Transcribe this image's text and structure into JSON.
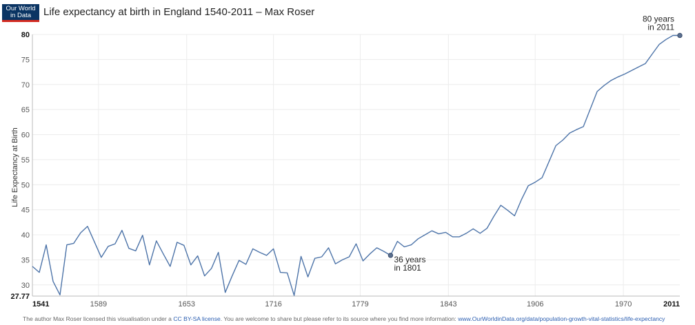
{
  "header": {
    "logo_line1": "Our World",
    "logo_line2": "in Data",
    "title": "Life expectancy at birth in England 1540-2011 – Max Roser"
  },
  "footer": {
    "text_before": "The author Max Roser licensed this visualisation under a ",
    "license_link": "CC BY-SA license",
    "text_middle": ". You are welcome to share but please refer to its source where you find more information: ",
    "source_link": "www.OurWorldinData.org/data/population-growth-vital-statistics/life-expectancy"
  },
  "colors": {
    "line": "#4c73a8",
    "grid": "#ececec",
    "logo_bg": "#0a3463",
    "logo_bar": "#d42b21"
  },
  "chart_data": {
    "type": "line",
    "title": "Life expectancy at birth in England 1540-2011 – Max Roser",
    "ylabel": "Life Expectancy at Birth",
    "xlabel": "",
    "xlim": [
      1541,
      2011
    ],
    "ylim": [
      27.77,
      80
    ],
    "x_ticks": [
      "1541",
      "1589",
      "1653",
      "1716",
      "1779",
      "1843",
      "1906",
      "1970",
      "2011"
    ],
    "x_tick_values": [
      1541,
      1589,
      1653,
      1716,
      1779,
      1843,
      1906,
      1970,
      2011
    ],
    "y_ticks": [
      "27.77",
      "30",
      "35",
      "40",
      "45",
      "50",
      "55",
      "60",
      "65",
      "70",
      "75",
      "80"
    ],
    "y_tick_values": [
      27.77,
      30,
      35,
      40,
      45,
      50,
      55,
      60,
      65,
      70,
      75,
      80
    ],
    "grid": true,
    "series": [
      {
        "x": [
          1541,
          1546,
          1551,
          1556,
          1561,
          1566,
          1571,
          1576,
          1581,
          1586,
          1591,
          1596,
          1601,
          1606,
          1611,
          1616,
          1621,
          1626,
          1631,
          1636,
          1641,
          1646,
          1651,
          1656,
          1661,
          1666,
          1671,
          1676,
          1681,
          1686,
          1691,
          1696,
          1701,
          1706,
          1711,
          1716,
          1721,
          1726,
          1731,
          1736,
          1741,
          1746,
          1751,
          1756,
          1761,
          1766,
          1771,
          1776,
          1781,
          1786,
          1791,
          1796,
          1801,
          1806,
          1811,
          1816,
          1821,
          1826,
          1831,
          1836,
          1841,
          1846,
          1851,
          1856,
          1861,
          1866,
          1871,
          1876,
          1881,
          1886,
          1891,
          1896,
          1901,
          1906,
          1911,
          1916,
          1921,
          1926,
          1931,
          1936,
          1941,
          1946,
          1951,
          1956,
          1961,
          1966,
          1971,
          1976,
          1981,
          1986,
          1991,
          1996,
          2001,
          2006,
          2011
        ],
        "y": [
          33.7,
          32.5,
          38.0,
          30.7,
          28.0,
          38.0,
          38.3,
          40.4,
          41.7,
          38.6,
          35.5,
          37.7,
          38.2,
          40.9,
          37.3,
          36.8,
          39.9,
          34.0,
          38.8,
          36.2,
          33.7,
          38.5,
          37.9,
          34.0,
          35.8,
          31.8,
          33.3,
          36.5,
          28.5,
          31.8,
          34.9,
          34.1,
          37.2,
          36.5,
          35.9,
          37.2,
          32.5,
          32.4,
          27.9,
          35.7,
          31.6,
          35.3,
          35.6,
          37.4,
          34.2,
          35.0,
          35.6,
          38.2,
          34.8,
          36.2,
          37.4,
          36.7,
          35.9,
          38.7,
          37.6,
          38.0,
          39.2,
          40.0,
          40.8,
          40.2,
          40.5,
          39.6,
          39.6,
          40.3,
          41.2,
          40.3,
          41.3,
          43.7,
          45.9,
          44.9,
          43.8,
          47.0,
          49.8,
          50.5,
          51.4,
          54.6,
          57.8,
          58.9,
          60.3,
          61.0,
          61.6,
          65.1,
          68.6,
          69.8,
          70.8,
          71.5,
          72.1,
          72.8,
          73.5,
          74.2,
          76.1,
          78.0,
          79.0,
          79.8,
          79.8
        ]
      }
    ],
    "highlights": [
      {
        "x": 1801,
        "y": 35.9,
        "label_line1": "36 years",
        "label_line2": "in 1801"
      },
      {
        "x": 2011,
        "y": 79.8,
        "label_line1": "80 years",
        "label_line2": "in 2011"
      }
    ]
  }
}
